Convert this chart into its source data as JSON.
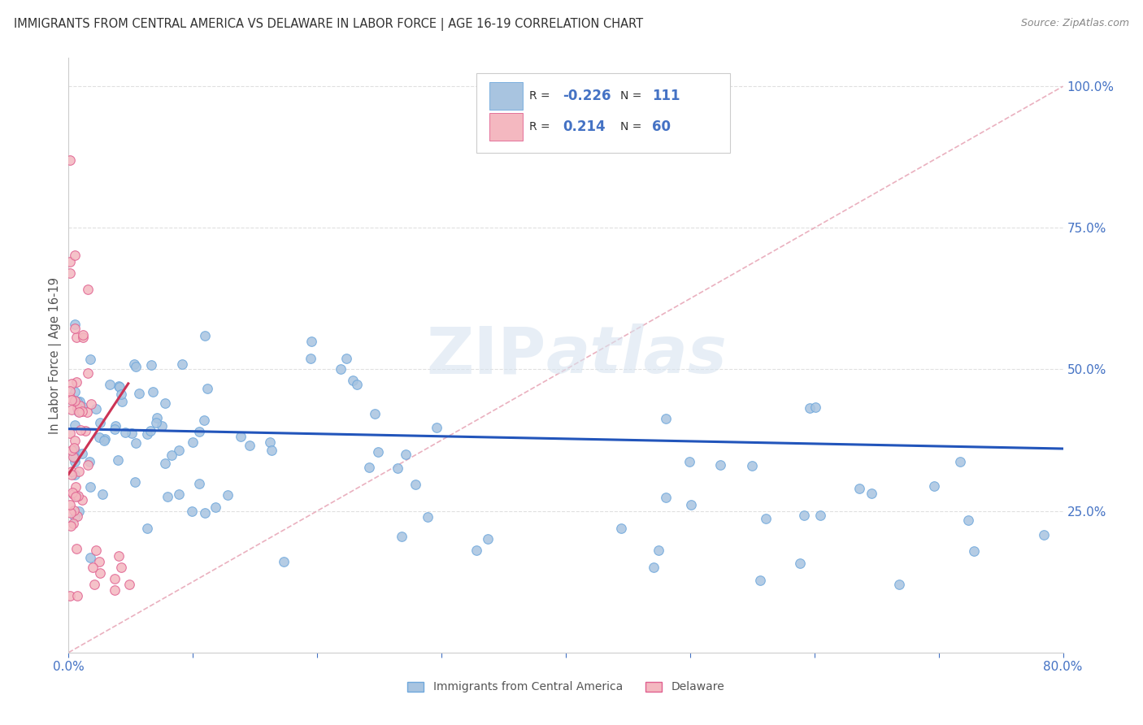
{
  "title": "IMMIGRANTS FROM CENTRAL AMERICA VS DELAWARE IN LABOR FORCE | AGE 16-19 CORRELATION CHART",
  "source": "Source: ZipAtlas.com",
  "ylabel": "In Labor Force | Age 16-19",
  "xlim": [
    0.0,
    0.8
  ],
  "ylim": [
    0.0,
    1.05
  ],
  "xtick_positions": [
    0.0,
    0.1,
    0.2,
    0.3,
    0.4,
    0.5,
    0.6,
    0.7,
    0.8
  ],
  "xticklabels": [
    "0.0%",
    "",
    "",
    "",
    "",
    "",
    "",
    "",
    "80.0%"
  ],
  "yticks_right": [
    0.25,
    0.5,
    0.75,
    1.0
  ],
  "ytick_right_labels": [
    "25.0%",
    "50.0%",
    "75.0%",
    "100.0%"
  ],
  "blue_scatter_color": "#a8c4e0",
  "blue_edge_color": "#6fa8dc",
  "pink_scatter_color": "#f4b8c0",
  "pink_edge_color": "#e06090",
  "trend_blue_color": "#2255bb",
  "trend_pink_color": "#cc3355",
  "diag_color": "#e8a8b8",
  "legend_R_blue": "-0.226",
  "legend_N_blue": "111",
  "legend_R_pink": "0.214",
  "legend_N_pink": "60",
  "legend_label_blue": "Immigrants from Central America",
  "legend_label_pink": "Delaware",
  "background_color": "#ffffff",
  "grid_color": "#e0e0e0",
  "tick_color": "#4472c4",
  "label_color": "#333333",
  "source_color": "#888888"
}
